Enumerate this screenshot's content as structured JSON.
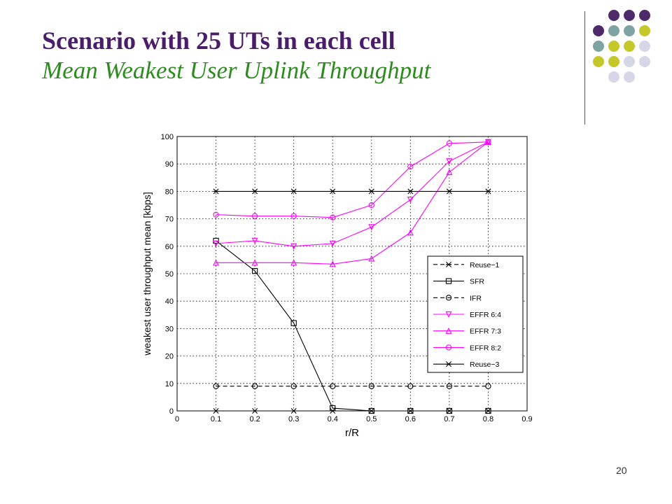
{
  "slide": {
    "title": "Scenario with 25 UTs in each cell",
    "subtitle": "Mean Weakest User Uplink Throughput",
    "page_number": "20"
  },
  "decor": {
    "dot_colors": [
      "#4e2a6b",
      "#7fa3a0",
      "#c5c82a",
      "#d6d6e6"
    ]
  },
  "chart_data": {
    "type": "line",
    "xlabel": "r/R",
    "ylabel": "weakest user throughput mean [kbps]",
    "xlim": [
      0,
      0.9
    ],
    "ylim": [
      0,
      100
    ],
    "xticks": [
      0,
      0.1,
      0.2,
      0.3,
      0.4,
      0.5,
      0.6,
      0.7,
      0.8,
      0.9
    ],
    "yticks": [
      0,
      10,
      20,
      30,
      40,
      50,
      60,
      70,
      80,
      90,
      100
    ],
    "grid": true,
    "legend_position": "right",
    "x": [
      0.1,
      0.2,
      0.3,
      0.4,
      0.5,
      0.6,
      0.7,
      0.8
    ],
    "series": [
      {
        "name": "Reuse−1",
        "color": "#000000",
        "dash": "dashed",
        "marker": "star",
        "values": [
          0,
          0,
          0,
          0,
          0,
          0,
          0,
          0
        ]
      },
      {
        "name": "SFR",
        "color": "#000000",
        "dash": "solid",
        "marker": "square",
        "values": [
          62,
          51,
          32,
          1,
          0,
          0,
          0,
          0
        ]
      },
      {
        "name": "IFR",
        "color": "#000000",
        "dash": "dashed",
        "marker": "circle",
        "values": [
          9,
          9,
          9,
          9,
          9,
          9,
          9,
          9
        ]
      },
      {
        "name": "EFFR 6:4",
        "color": "#ff00ff",
        "dash": "solid",
        "marker": "triangle-down",
        "values": [
          61,
          62,
          60,
          61,
          67,
          77,
          91,
          98
        ]
      },
      {
        "name": "EFFR 7:3",
        "color": "#ff00ff",
        "dash": "solid",
        "marker": "triangle-up",
        "values": [
          54,
          54,
          54,
          53.5,
          55.5,
          65,
          87,
          98
        ]
      },
      {
        "name": "EFFR 8:2",
        "color": "#ff00ff",
        "dash": "solid",
        "marker": "circle",
        "values": [
          71.5,
          71,
          71,
          70.5,
          75,
          89,
          97.5,
          98
        ]
      },
      {
        "name": "Reuse−3",
        "color": "#000000",
        "dash": "solid",
        "marker": "star",
        "values": [
          80,
          80,
          80,
          80,
          80,
          80,
          80,
          80
        ]
      }
    ]
  }
}
